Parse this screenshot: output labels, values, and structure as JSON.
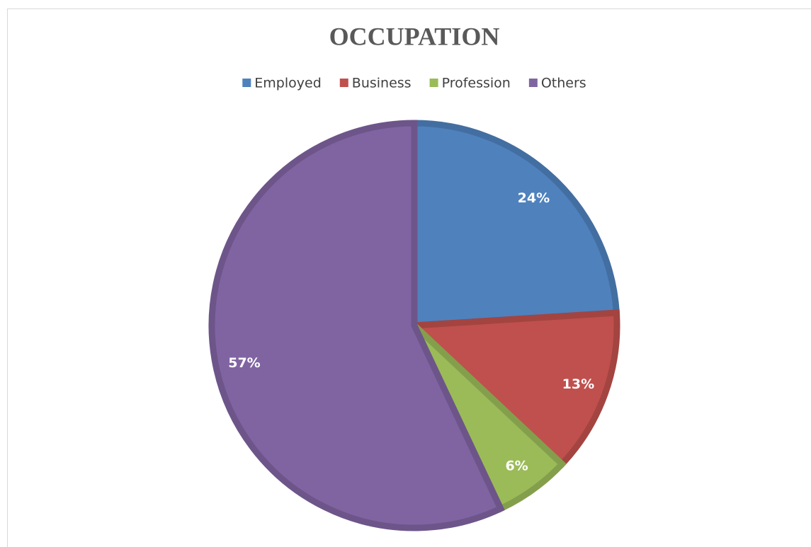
{
  "chart_data": {
    "type": "pie",
    "title": "OCCUPATION",
    "categories": [
      "Employed",
      "Business",
      "Profession",
      "Others"
    ],
    "values": [
      24,
      13,
      6,
      57
    ],
    "value_labels": [
      "24%",
      "13%",
      "6%",
      "57%"
    ],
    "colors": [
      "#4f81bd",
      "#c0504d",
      "#9bbb59",
      "#8064a2"
    ],
    "legend": "top"
  }
}
